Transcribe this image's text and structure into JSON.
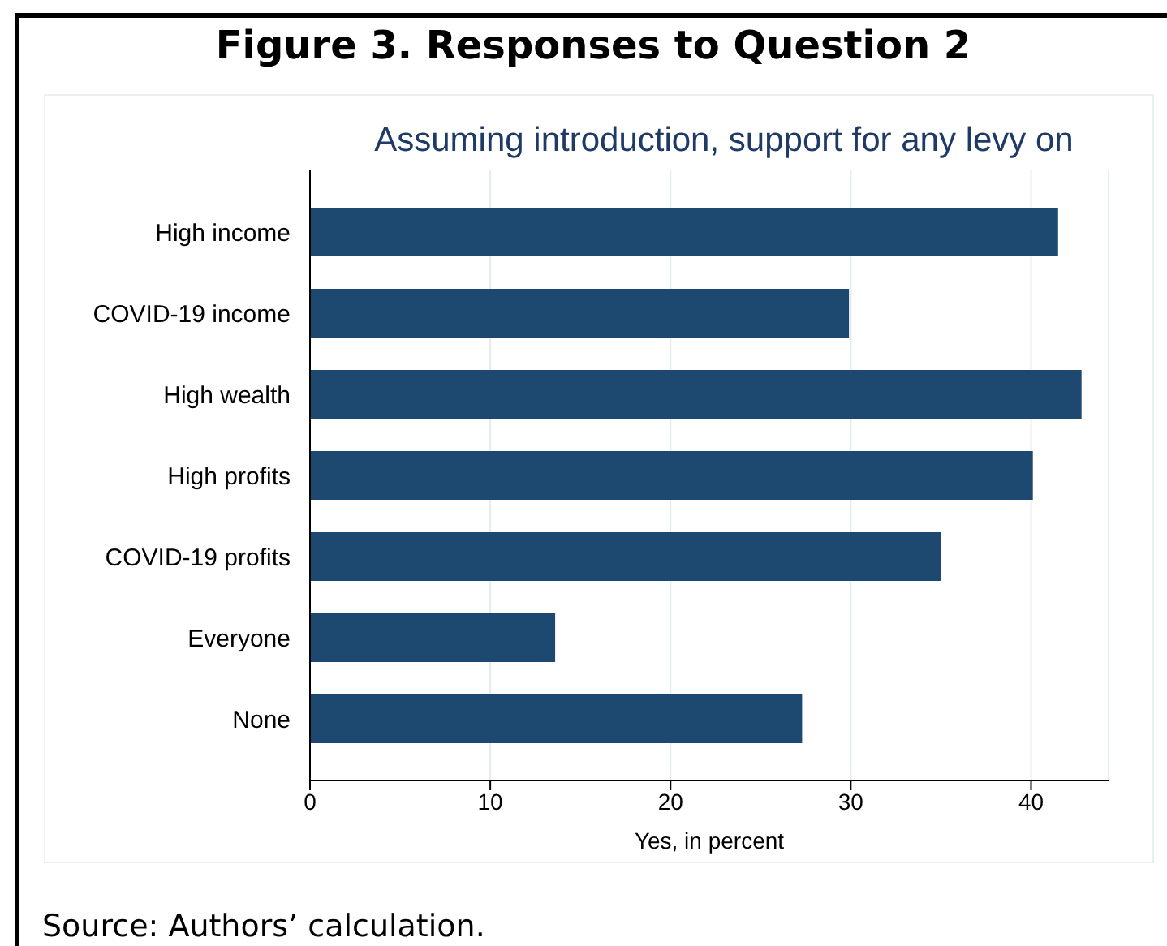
{
  "chart_data": {
    "type": "bar",
    "orientation": "horizontal",
    "title": "Figure 3. Responses to Question 2",
    "subtitle": "Assuming introduction, support for any levy on",
    "xlabel": "Yes, in percent",
    "categories": [
      "High income",
      "COVID-19 income",
      "High wealth",
      "High profits",
      "COVID-19 profits",
      "Everyone",
      "None"
    ],
    "values": [
      41.5,
      29.9,
      42.8,
      40.1,
      35.0,
      13.6,
      27.3
    ],
    "color": "#1d4870",
    "xlim": [
      0,
      44.3
    ],
    "xticks": [
      0,
      10,
      20,
      30,
      40
    ],
    "grid": "x",
    "annotations": [
      "Source: Authors’ calculation."
    ]
  }
}
